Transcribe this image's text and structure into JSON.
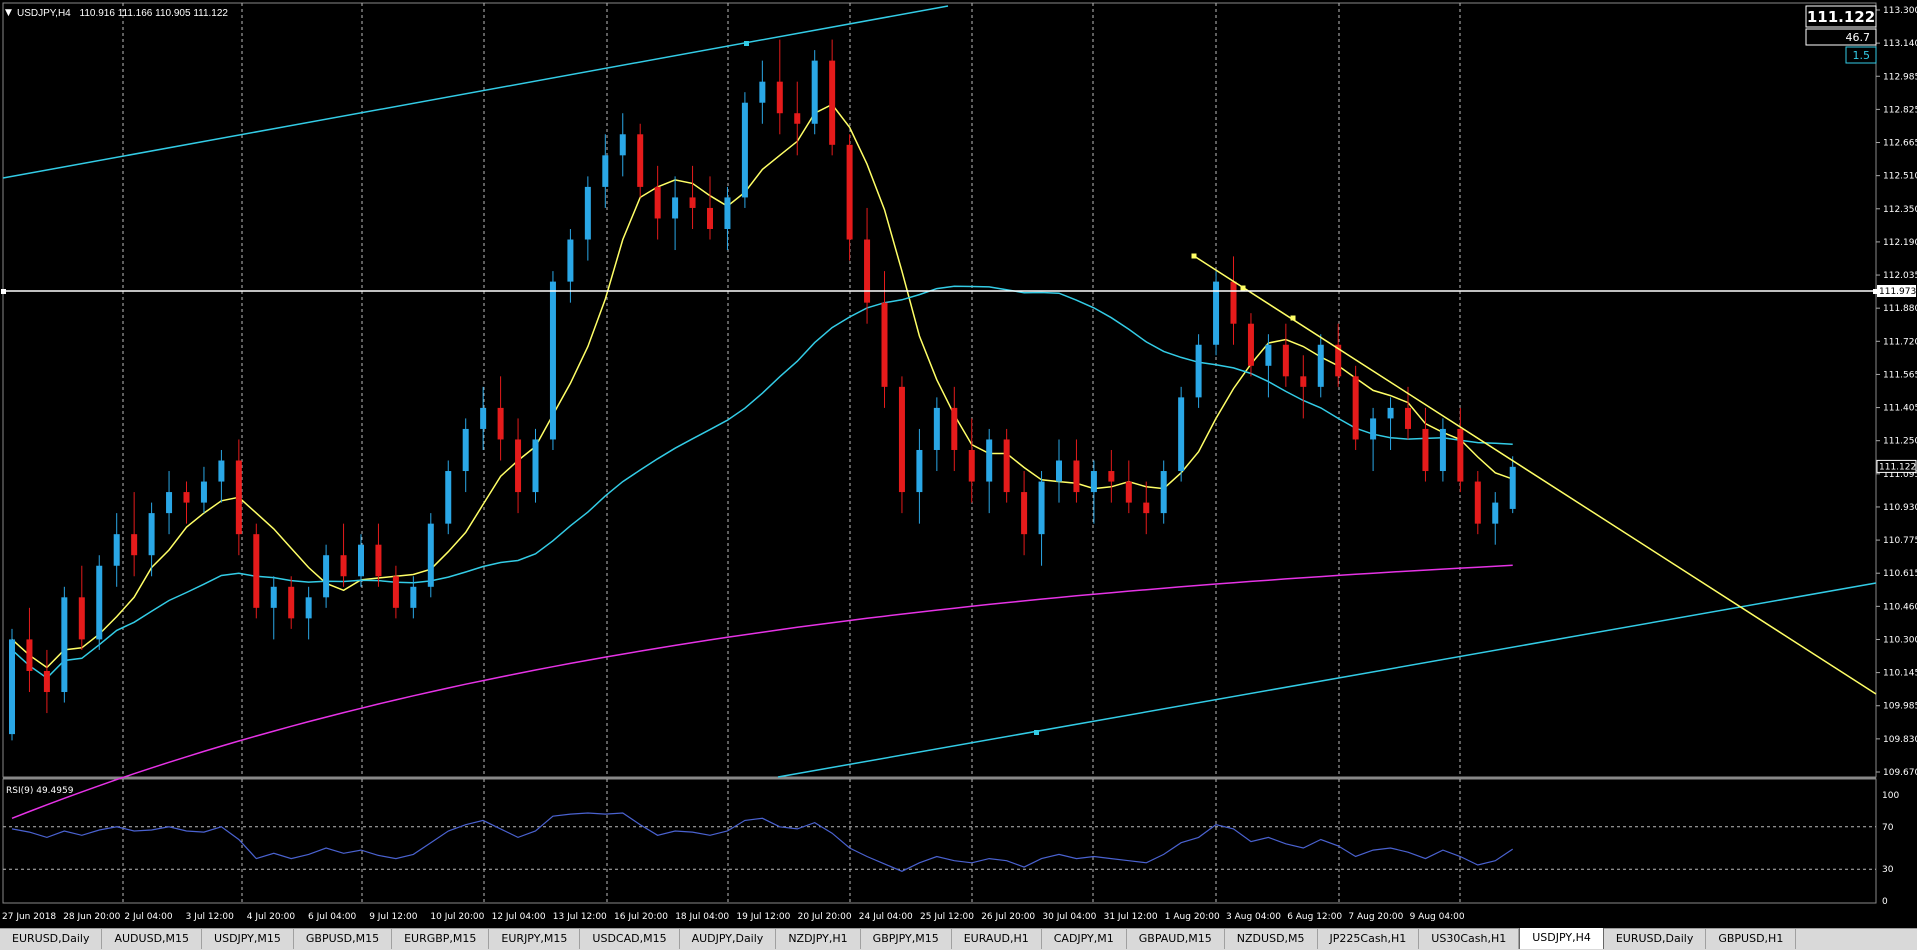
{
  "header": {
    "symbol_label": "USDJPY,H4",
    "ohlc": "110.916 111.166 110.905 111.122",
    "collapse_icon": "triangle-down-icon"
  },
  "price_box": {
    "price": "111.122",
    "value2": "46.7",
    "value3": "1.5"
  },
  "colors": {
    "background": "#000000",
    "bull_candle": "#2aa7e6",
    "bear_candle": "#e51b1b",
    "ma_fast": "#ffff66",
    "ma_mid": "#33cce6",
    "ma_slow": "#e633e6",
    "channel": "#33cce6",
    "trendline": "#ffff66",
    "hline": "#ffffff",
    "rsi_line": "#4a62d0"
  },
  "price_axis": {
    "ticks": [
      "113.300",
      "113.140",
      "112.985",
      "112.825",
      "112.665",
      "112.510",
      "112.350",
      "112.190",
      "112.035",
      "111.880",
      "111.720",
      "111.565",
      "111.405",
      "111.250",
      "111.095",
      "110.930",
      "110.775",
      "110.615",
      "110.460",
      "110.300",
      "110.145",
      "109.985",
      "109.830",
      "109.670"
    ],
    "hline_label": "111.973",
    "current_label": "111.122"
  },
  "time_axis": {
    "labels": [
      "27 Jun 2018",
      "28 Jun 20:00",
      "2 Jul 04:00",
      "3 Jul 12:00",
      "4 Jul 20:00",
      "6 Jul 04:00",
      "9 Jul 12:00",
      "10 Jul 20:00",
      "12 Jul 04:00",
      "13 Jul 12:00",
      "16 Jul 20:00",
      "18 Jul 04:00",
      "19 Jul 12:00",
      "20 Jul 20:00",
      "24 Jul 04:00",
      "25 Jul 12:00",
      "26 Jul 20:00",
      "30 Jul 04:00",
      "31 Jul 12:00",
      "1 Aug 20:00",
      "3 Aug 04:00",
      "6 Aug 12:00",
      "7 Aug 20:00",
      "9 Aug 04:00"
    ]
  },
  "rsi": {
    "label": "RSI(9) 49.4959",
    "ticks": [
      "100",
      "70",
      "30",
      "0"
    ]
  },
  "tabs": [
    {
      "label": "EURUSD,Daily",
      "active": false
    },
    {
      "label": "AUDUSD,M15",
      "active": false
    },
    {
      "label": "USDJPY,M15",
      "active": false
    },
    {
      "label": "GBPUSD,M15",
      "active": false
    },
    {
      "label": "EURGBP,M15",
      "active": false
    },
    {
      "label": "EURJPY,M15",
      "active": false
    },
    {
      "label": "USDCAD,M15",
      "active": false
    },
    {
      "label": "AUDJPY,Daily",
      "active": false
    },
    {
      "label": "NZDJPY,H1",
      "active": false
    },
    {
      "label": "GBPJPY,M15",
      "active": false
    },
    {
      "label": "EURAUD,H1",
      "active": false
    },
    {
      "label": "CADJPY,M1",
      "active": false
    },
    {
      "label": "GBPAUD,M15",
      "active": false
    },
    {
      "label": "NZDUSD,M5",
      "active": false
    },
    {
      "label": "JP225Cash,H1",
      "active": false
    },
    {
      "label": "US30Cash,H1",
      "active": false
    },
    {
      "label": "USDJPY,H4",
      "active": true
    },
    {
      "label": "EURUSD,Daily",
      "active": false
    },
    {
      "label": "GBPUSD,H1",
      "active": false
    }
  ],
  "chart_data": {
    "type": "candlestick",
    "symbol": "USDJPY,H4",
    "ylim": [
      109.67,
      113.3
    ],
    "rsi_ylim": [
      0,
      100
    ],
    "rsi_levels": [
      70,
      30
    ],
    "candles": [
      [
        109.85,
        110.35,
        109.82,
        110.3
      ],
      [
        110.3,
        110.45,
        110.05,
        110.15
      ],
      [
        110.15,
        110.25,
        109.95,
        110.05
      ],
      [
        110.05,
        110.55,
        110.0,
        110.5
      ],
      [
        110.5,
        110.65,
        110.25,
        110.3
      ],
      [
        110.3,
        110.7,
        110.25,
        110.65
      ],
      [
        110.65,
        110.9,
        110.55,
        110.8
      ],
      [
        110.8,
        111.0,
        110.6,
        110.7
      ],
      [
        110.7,
        110.95,
        110.6,
        110.9
      ],
      [
        110.9,
        111.1,
        110.8,
        111.0
      ],
      [
        111.0,
        111.05,
        110.85,
        110.95
      ],
      [
        110.95,
        111.12,
        110.9,
        111.05
      ],
      [
        111.05,
        111.2,
        110.95,
        111.15
      ],
      [
        111.15,
        111.25,
        110.7,
        110.8
      ],
      [
        110.8,
        110.85,
        110.4,
        110.45
      ],
      [
        110.45,
        110.6,
        110.3,
        110.55
      ],
      [
        110.55,
        110.6,
        110.35,
        110.4
      ],
      [
        110.4,
        110.55,
        110.3,
        110.5
      ],
      [
        110.5,
        110.75,
        110.45,
        110.7
      ],
      [
        110.7,
        110.85,
        110.55,
        110.6
      ],
      [
        110.6,
        110.8,
        110.55,
        110.75
      ],
      [
        110.75,
        110.85,
        110.55,
        110.6
      ],
      [
        110.6,
        110.65,
        110.4,
        110.45
      ],
      [
        110.45,
        110.6,
        110.4,
        110.55
      ],
      [
        110.55,
        110.9,
        110.5,
        110.85
      ],
      [
        110.85,
        111.15,
        110.8,
        111.1
      ],
      [
        111.1,
        111.35,
        111.0,
        111.3
      ],
      [
        111.3,
        111.5,
        111.2,
        111.4
      ],
      [
        111.4,
        111.55,
        111.15,
        111.25
      ],
      [
        111.25,
        111.35,
        110.9,
        111.0
      ],
      [
        111.0,
        111.3,
        110.95,
        111.25
      ],
      [
        111.25,
        112.05,
        111.2,
        112.0
      ],
      [
        112.0,
        112.25,
        111.9,
        112.2
      ],
      [
        112.2,
        112.5,
        112.1,
        112.45
      ],
      [
        112.45,
        112.7,
        112.35,
        112.6
      ],
      [
        112.6,
        112.8,
        112.5,
        112.7
      ],
      [
        112.7,
        112.75,
        112.4,
        112.45
      ],
      [
        112.45,
        112.55,
        112.2,
        112.3
      ],
      [
        112.3,
        112.5,
        112.15,
        112.4
      ],
      [
        112.4,
        112.55,
        112.25,
        112.35
      ],
      [
        112.35,
        112.5,
        112.2,
        112.25
      ],
      [
        112.25,
        112.45,
        112.15,
        112.4
      ],
      [
        112.4,
        112.9,
        112.35,
        112.85
      ],
      [
        112.85,
        113.05,
        112.75,
        112.95
      ],
      [
        112.95,
        113.15,
        112.7,
        112.8
      ],
      [
        112.8,
        112.95,
        112.6,
        112.75
      ],
      [
        112.75,
        113.1,
        112.7,
        113.05
      ],
      [
        113.05,
        113.15,
        112.6,
        112.65
      ],
      [
        112.65,
        112.7,
        112.1,
        112.2
      ],
      [
        112.2,
        112.35,
        111.8,
        111.9
      ],
      [
        111.9,
        112.05,
        111.4,
        111.5
      ],
      [
        111.5,
        111.55,
        110.9,
        111.0
      ],
      [
        111.0,
        111.3,
        110.85,
        111.2
      ],
      [
        111.2,
        111.45,
        111.1,
        111.4
      ],
      [
        111.4,
        111.5,
        111.1,
        111.2
      ],
      [
        111.2,
        111.35,
        110.95,
        111.05
      ],
      [
        111.05,
        111.3,
        110.9,
        111.25
      ],
      [
        111.25,
        111.3,
        110.95,
        111.0
      ],
      [
        111.0,
        111.1,
        110.7,
        110.8
      ],
      [
        110.8,
        111.1,
        110.65,
        111.05
      ],
      [
        111.05,
        111.25,
        110.95,
        111.15
      ],
      [
        111.15,
        111.25,
        110.95,
        111.0
      ],
      [
        111.0,
        111.15,
        110.85,
        111.1
      ],
      [
        111.1,
        111.2,
        110.95,
        111.05
      ],
      [
        111.05,
        111.15,
        110.9,
        110.95
      ],
      [
        110.95,
        111.05,
        110.8,
        110.9
      ],
      [
        110.9,
        111.15,
        110.85,
        111.1
      ],
      [
        111.1,
        111.5,
        111.05,
        111.45
      ],
      [
        111.45,
        111.75,
        111.4,
        111.7
      ],
      [
        111.7,
        112.05,
        111.65,
        112.0
      ],
      [
        112.0,
        112.12,
        111.7,
        111.8
      ],
      [
        111.8,
        111.85,
        111.55,
        111.6
      ],
      [
        111.6,
        111.75,
        111.45,
        111.7
      ],
      [
        111.7,
        111.8,
        111.5,
        111.55
      ],
      [
        111.55,
        111.65,
        111.35,
        111.5
      ],
      [
        111.5,
        111.75,
        111.45,
        111.7
      ],
      [
        111.7,
        111.8,
        111.5,
        111.55
      ],
      [
        111.55,
        111.6,
        111.2,
        111.25
      ],
      [
        111.25,
        111.4,
        111.1,
        111.35
      ],
      [
        111.35,
        111.45,
        111.2,
        111.4
      ],
      [
        111.4,
        111.5,
        111.25,
        111.3
      ],
      [
        111.3,
        111.4,
        111.05,
        111.1
      ],
      [
        111.1,
        111.35,
        111.05,
        111.3
      ],
      [
        111.3,
        111.4,
        111.0,
        111.05
      ],
      [
        111.05,
        111.1,
        110.8,
        110.85
      ],
      [
        110.85,
        111.0,
        110.75,
        110.95
      ],
      [
        110.92,
        111.17,
        110.9,
        111.12
      ]
    ],
    "rsi_values": [
      68,
      65,
      60,
      66,
      62,
      67,
      70,
      66,
      67,
      70,
      66,
      65,
      70,
      58,
      40,
      45,
      40,
      44,
      50,
      45,
      48,
      43,
      40,
      44,
      55,
      66,
      72,
      76,
      68,
      60,
      66,
      80,
      82,
      83,
      82,
      83,
      72,
      62,
      66,
      65,
      62,
      66,
      76,
      78,
      70,
      68,
      74,
      64,
      50,
      42,
      35,
      28,
      36,
      42,
      38,
      36,
      40,
      38,
      32,
      40,
      44,
      40,
      42,
      40,
      38,
      36,
      44,
      55,
      60,
      72,
      68,
      56,
      60,
      54,
      50,
      58,
      52,
      42,
      48,
      50,
      46,
      40,
      48,
      42,
      34,
      38,
      49
    ]
  }
}
